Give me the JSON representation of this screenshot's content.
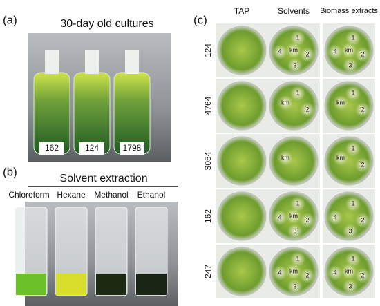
{
  "panel_a": {
    "label": "(a)",
    "title": "30-day old cultures",
    "bottles": [
      "162",
      "124",
      "1798"
    ]
  },
  "panel_b": {
    "label": "(b)",
    "title": "Solvent extraction",
    "solvents": [
      "Chloroform",
      "Hexane",
      "Methanol",
      "Ethanol"
    ]
  },
  "panel_c": {
    "label": "(c)",
    "columns": [
      "TAP",
      "Solvents",
      "Biomass extracts"
    ],
    "rows": [
      {
        "strain": "124",
        "solvents_marks": [
          "1",
          "2",
          "3",
          "4",
          "km"
        ],
        "biomass_marks": [
          "1",
          "2",
          "3",
          "4",
          "km"
        ]
      },
      {
        "strain": "4764",
        "solvents_marks": [
          "1",
          "2",
          "km"
        ],
        "biomass_marks": [
          "1",
          "2",
          "km"
        ]
      },
      {
        "strain": "3054",
        "solvents_marks": [
          "km"
        ],
        "biomass_marks": [
          "1",
          "2",
          "km"
        ]
      },
      {
        "strain": "162",
        "solvents_marks": [
          "1",
          "2",
          "3",
          "4",
          "km"
        ],
        "biomass_marks": [
          "1",
          "2",
          "3",
          "4"
        ]
      },
      {
        "strain": "247",
        "solvents_marks": [
          "1",
          "2",
          "3",
          "4",
          "km"
        ],
        "biomass_marks": [
          "1",
          "2",
          "3",
          "4",
          "km"
        ]
      }
    ]
  }
}
